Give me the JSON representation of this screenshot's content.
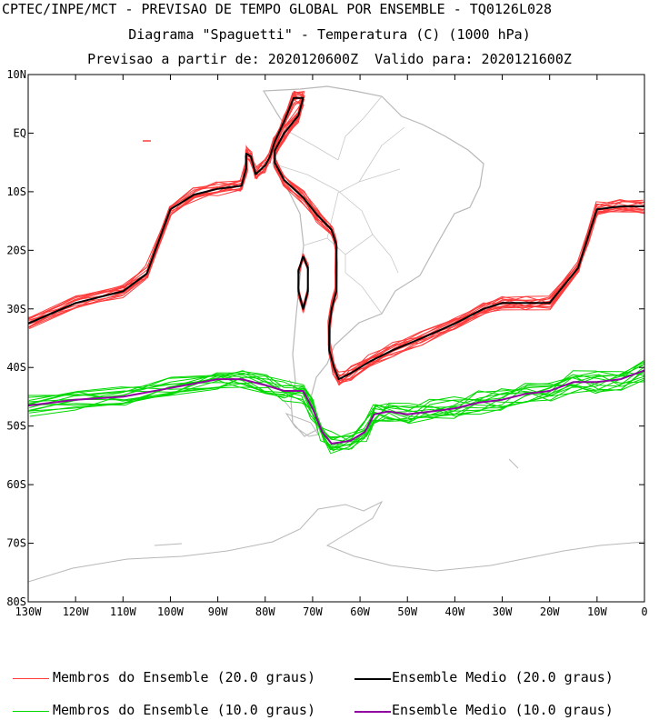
{
  "header": {
    "line1": "CPTEC/INPE/MCT - PREVISAO DE TEMPO GLOBAL POR ENSEMBLE - TQ0126L028",
    "line2": "Diagrama \"Spaguetti\" - Temperatura (C) (1000 hPa)",
    "line3": "Previsao a partir de: 2020120600Z  Valido para: 2020121600Z"
  },
  "chart_data": {
    "type": "line",
    "title": "Diagrama \"Spaguetti\" - Temperatura (C) (1000 hPa)",
    "xlim": [
      -130,
      0
    ],
    "ylim": [
      -80,
      10
    ],
    "xticks": [
      {
        "v": -130,
        "label": "130W"
      },
      {
        "v": -120,
        "label": "120W"
      },
      {
        "v": -110,
        "label": "110W"
      },
      {
        "v": -100,
        "label": "100W"
      },
      {
        "v": -90,
        "label": "90W"
      },
      {
        "v": -80,
        "label": "80W"
      },
      {
        "v": -70,
        "label": "70W"
      },
      {
        "v": -60,
        "label": "60W"
      },
      {
        "v": -50,
        "label": "50W"
      },
      {
        "v": -40,
        "label": "40W"
      },
      {
        "v": -30,
        "label": "30W"
      },
      {
        "v": -20,
        "label": "20W"
      },
      {
        "v": -10,
        "label": "10W"
      },
      {
        "v": 0,
        "label": "0"
      }
    ],
    "yticks": [
      {
        "v": 10,
        "label": "10N"
      },
      {
        "v": 0,
        "label": "EQ"
      },
      {
        "v": -10,
        "label": "10S"
      },
      {
        "v": -20,
        "label": "20S"
      },
      {
        "v": -30,
        "label": "30S"
      },
      {
        "v": -40,
        "label": "40S"
      },
      {
        "v": -50,
        "label": "50S"
      },
      {
        "v": -60,
        "label": "60S"
      },
      {
        "v": -70,
        "label": "70S"
      },
      {
        "v": -80,
        "label": "80S"
      }
    ],
    "series": [
      {
        "name": "Ensemble Medio (20.0 graus)",
        "color": "#000000",
        "points": [
          [
            -130,
            -32.5
          ],
          [
            -120,
            -29
          ],
          [
            -110,
            -27
          ],
          [
            -105,
            -24
          ],
          [
            -100,
            -13
          ],
          [
            -95,
            -10.5
          ],
          [
            -90,
            -9.5
          ],
          [
            -85,
            -9
          ],
          [
            -84,
            -6
          ],
          [
            -84,
            -3.5
          ],
          [
            -83,
            -4
          ],
          [
            -82,
            -7
          ],
          [
            -80,
            -5.5
          ],
          [
            -79,
            -4
          ],
          [
            -78,
            -1.5
          ],
          [
            -76,
            2
          ],
          [
            -74,
            6
          ],
          [
            -72,
            6
          ],
          [
            -73,
            3
          ],
          [
            -76,
            0
          ],
          [
            -78,
            -3
          ],
          [
            -78,
            -5
          ],
          [
            -76,
            -8
          ],
          [
            -72,
            -11
          ],
          [
            -69,
            -14
          ],
          [
            -66,
            -16.5
          ],
          [
            -65,
            -19
          ],
          [
            -65,
            -23
          ],
          [
            -65,
            -27
          ],
          [
            -66,
            -30
          ],
          [
            -66.5,
            -33
          ],
          [
            -66.5,
            -37
          ],
          [
            -65.5,
            -40
          ],
          [
            -64.5,
            -42
          ],
          [
            -62,
            -41
          ],
          [
            -58,
            -39
          ],
          [
            -53,
            -37
          ],
          [
            -47,
            -35
          ],
          [
            -40,
            -32.5
          ],
          [
            -34,
            -30
          ],
          [
            -30,
            -29
          ],
          [
            -25,
            -29
          ],
          [
            -20,
            -29
          ],
          [
            -14,
            -23
          ],
          [
            -12,
            -18
          ],
          [
            -10,
            -13
          ],
          [
            -5,
            -12.5
          ],
          [
            0,
            -12.5
          ]
        ]
      },
      {
        "name": "Ensemble Medio (20.0 graus) - ilha",
        "color": "#000000",
        "points": [
          [
            -72,
            -21
          ],
          [
            -73,
            -23.5
          ],
          [
            -73,
            -27
          ],
          [
            -72,
            -30
          ],
          [
            -71,
            -27
          ],
          [
            -71,
            -23
          ],
          [
            -72,
            -21
          ]
        ]
      },
      {
        "name": "Ensemble Medio (10.0 graus)",
        "color": "#9000a0",
        "points": [
          [
            -130,
            -46.5
          ],
          [
            -120,
            -45.5
          ],
          [
            -110,
            -45
          ],
          [
            -100,
            -43.5
          ],
          [
            -90,
            -42
          ],
          [
            -85,
            -42
          ],
          [
            -80,
            -43
          ],
          [
            -76,
            -44
          ],
          [
            -72,
            -44
          ],
          [
            -70,
            -47
          ],
          [
            -68,
            -51
          ],
          [
            -66,
            -53
          ],
          [
            -62,
            -52.5
          ],
          [
            -59,
            -51
          ],
          [
            -57,
            -48
          ],
          [
            -54,
            -47.5
          ],
          [
            -50,
            -48
          ],
          [
            -45,
            -47.5
          ],
          [
            -40,
            -47
          ],
          [
            -35,
            -46
          ],
          [
            -30,
            -45.5
          ],
          [
            -25,
            -44.5
          ],
          [
            -20,
            -44
          ],
          [
            -15,
            -42.5
          ],
          [
            -10,
            -42.5
          ],
          [
            -5,
            -42
          ],
          [
            0,
            -40.5
          ]
        ]
      }
    ],
    "legend": [
      {
        "label": "Membros do Ensemble (20.0 graus)",
        "color": "#ff3b3b"
      },
      {
        "label": "Ensemble Medio (20.0 graus)",
        "color": "#000000"
      },
      {
        "label": "Membros do Ensemble (10.0 graus)",
        "color": "#00d800"
      },
      {
        "label": "Ensemble Medio (10.0 graus)",
        "color": "#9000a0"
      }
    ]
  }
}
